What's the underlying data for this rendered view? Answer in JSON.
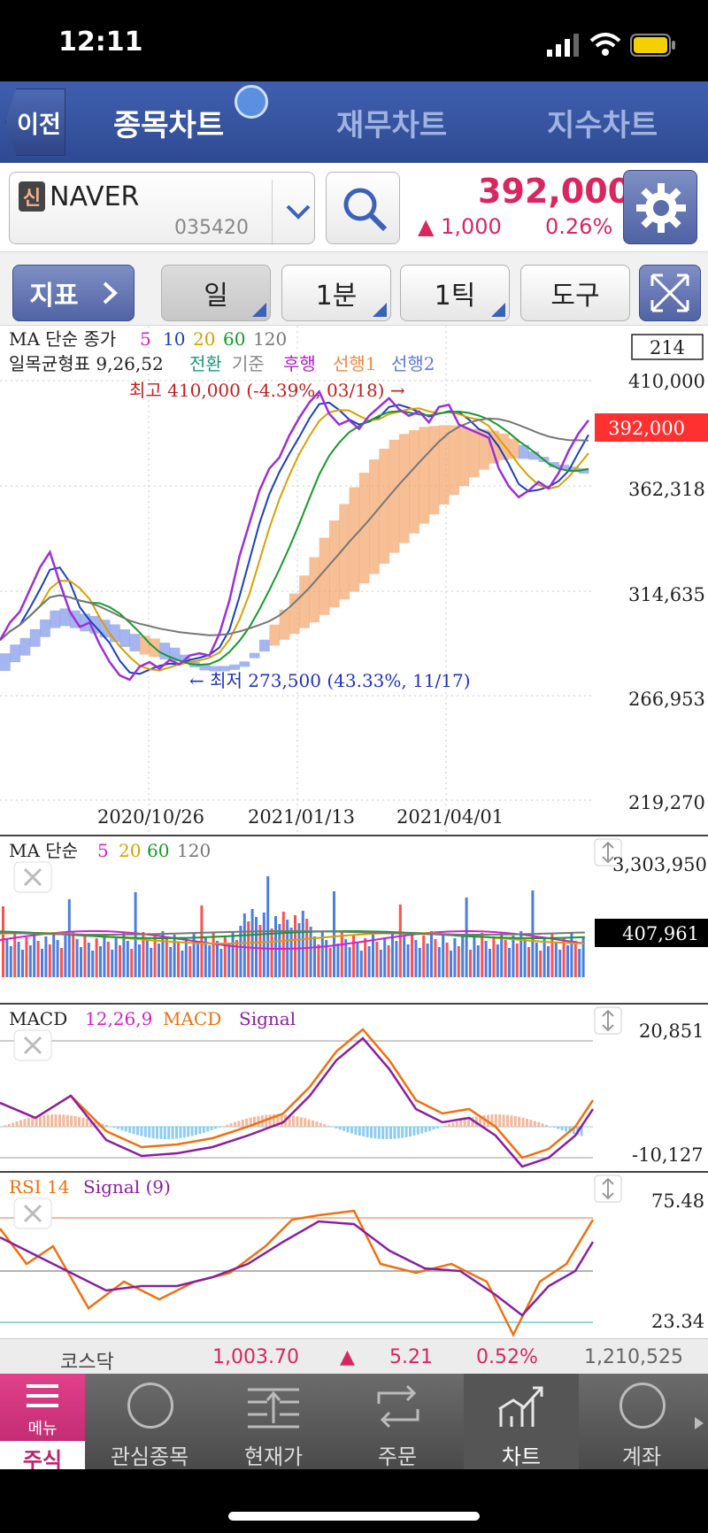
{
  "status": {
    "time": "12:11"
  },
  "header": {
    "back_label": "이전",
    "tabs": [
      "종목차트",
      "재무차트",
      "지수차트"
    ]
  },
  "stock": {
    "badge": "신",
    "name": "NAVER",
    "code": "035420",
    "price": "392,000",
    "change_arrow": "▲",
    "change": "1,000",
    "change_pct": "0.26%"
  },
  "toolbar": {
    "indicator_label": "지표",
    "period_day": "일",
    "period_min": "1분",
    "period_tick": "1틱",
    "tools": "도구"
  },
  "chart_data": [
    {
      "type": "line",
      "panel": "price",
      "legend_ma": {
        "title": "MA 단순 종가",
        "periods": [
          "5",
          "10",
          "20",
          "60",
          "120"
        ]
      },
      "legend_ichimoku": {
        "title": "일목균형표 9,26,52",
        "lines": [
          "전환",
          "기준",
          "후행",
          "선행1",
          "선행2"
        ]
      },
      "count_box": "214",
      "y_ticks": [
        "410,000",
        "362,318",
        "314,635",
        "266,953",
        "219,270"
      ],
      "current_price_tag": "392,000",
      "x_ticks": [
        "2020/10/26",
        "2021/01/13",
        "2021/04/01"
      ],
      "annotations": {
        "high": "최고 410,000 (-4.39%, 03/18) →",
        "low": "← 최저 273,500 (43.33%, 11/17)"
      },
      "ylim": [
        219270,
        410000
      ],
      "close_series": [
        292000,
        300000,
        305000,
        315000,
        325000,
        332000,
        318000,
        305000,
        298000,
        300000,
        290000,
        282000,
        276000,
        274000,
        280000,
        282000,
        279000,
        283000,
        281000,
        285000,
        286000,
        285000,
        295000,
        310000,
        330000,
        345000,
        360000,
        370000,
        375000,
        385000,
        393000,
        400000,
        405000,
        395000,
        390000,
        392000,
        388000,
        394000,
        398000,
        402000,
        397000,
        394000,
        396000,
        391000,
        398000,
        399000,
        390000,
        388000,
        386000,
        384000,
        370000,
        362000,
        357000,
        360000,
        364000,
        361000,
        368000,
        378000,
        386000,
        392000
      ]
    },
    {
      "type": "bar",
      "panel": "volume",
      "legend": {
        "title": "MA 단순",
        "periods": [
          "5",
          "20",
          "60",
          "120"
        ]
      },
      "y_ticks": [
        "3,303,950"
      ],
      "current_tag": "407,961"
    },
    {
      "type": "line",
      "panel": "macd",
      "legend": {
        "title": "MACD",
        "params": "12,26,9",
        "series": [
          "MACD",
          "Signal"
        ]
      },
      "y_ticks": [
        "20,851",
        "-10,127"
      ]
    },
    {
      "type": "line",
      "panel": "rsi",
      "legend": {
        "title": "RSI 14",
        "series": [
          "Signal (9)"
        ]
      },
      "y_ticks": [
        "75.48",
        "23.34"
      ]
    }
  ],
  "kosdaq": {
    "name": "코스닥",
    "value": "1,003.70",
    "arrow": "▲",
    "change": "5.21",
    "pct": "0.52%",
    "volume": "1,210,525"
  },
  "bottom_nav": {
    "menu": "메뉴",
    "items": [
      "주식",
      "관심종목",
      "현재가",
      "주문",
      "차트",
      "계좌"
    ]
  }
}
